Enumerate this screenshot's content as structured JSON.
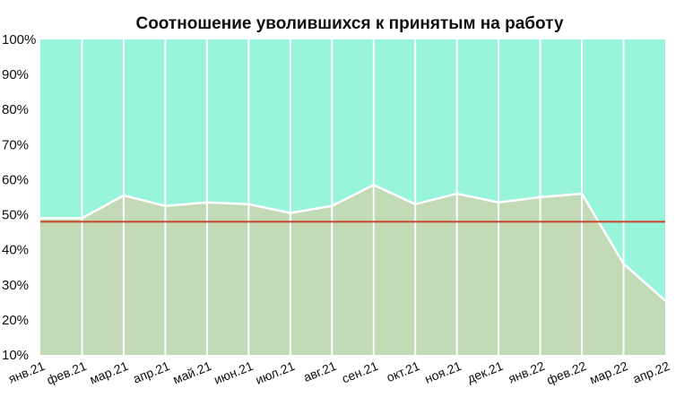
{
  "chart_data": {
    "type": "area",
    "title": "Соотношение уволившихся к принятым на работу",
    "categories": [
      "янв.21",
      "фев.21",
      "мар.21",
      "апр.21",
      "май.21",
      "июн.21",
      "июл.21",
      "авг.21",
      "сен.21",
      "окт.21",
      "ноя.21",
      "дек.21",
      "янв.22",
      "фев.22",
      "мар.22",
      "апр.22"
    ],
    "series": [
      {
        "values": [
          49,
          49,
          55.5,
          52.5,
          53.5,
          53,
          50.5,
          52.5,
          58.5,
          53,
          56,
          53.5,
          55,
          56,
          36,
          25.5
        ],
        "color": "#c2dab5"
      }
    ],
    "upper_fill_color": "#98f5dc",
    "reference_line": {
      "value": 48,
      "color": "#c8442c"
    },
    "ylim": [
      10,
      100
    ],
    "yticks": [
      "10%",
      "20%",
      "30%",
      "40%",
      "50%",
      "60%",
      "70%",
      "80%",
      "90%",
      "100%"
    ],
    "grid": "vertical",
    "grid_color": "#ffffff"
  }
}
